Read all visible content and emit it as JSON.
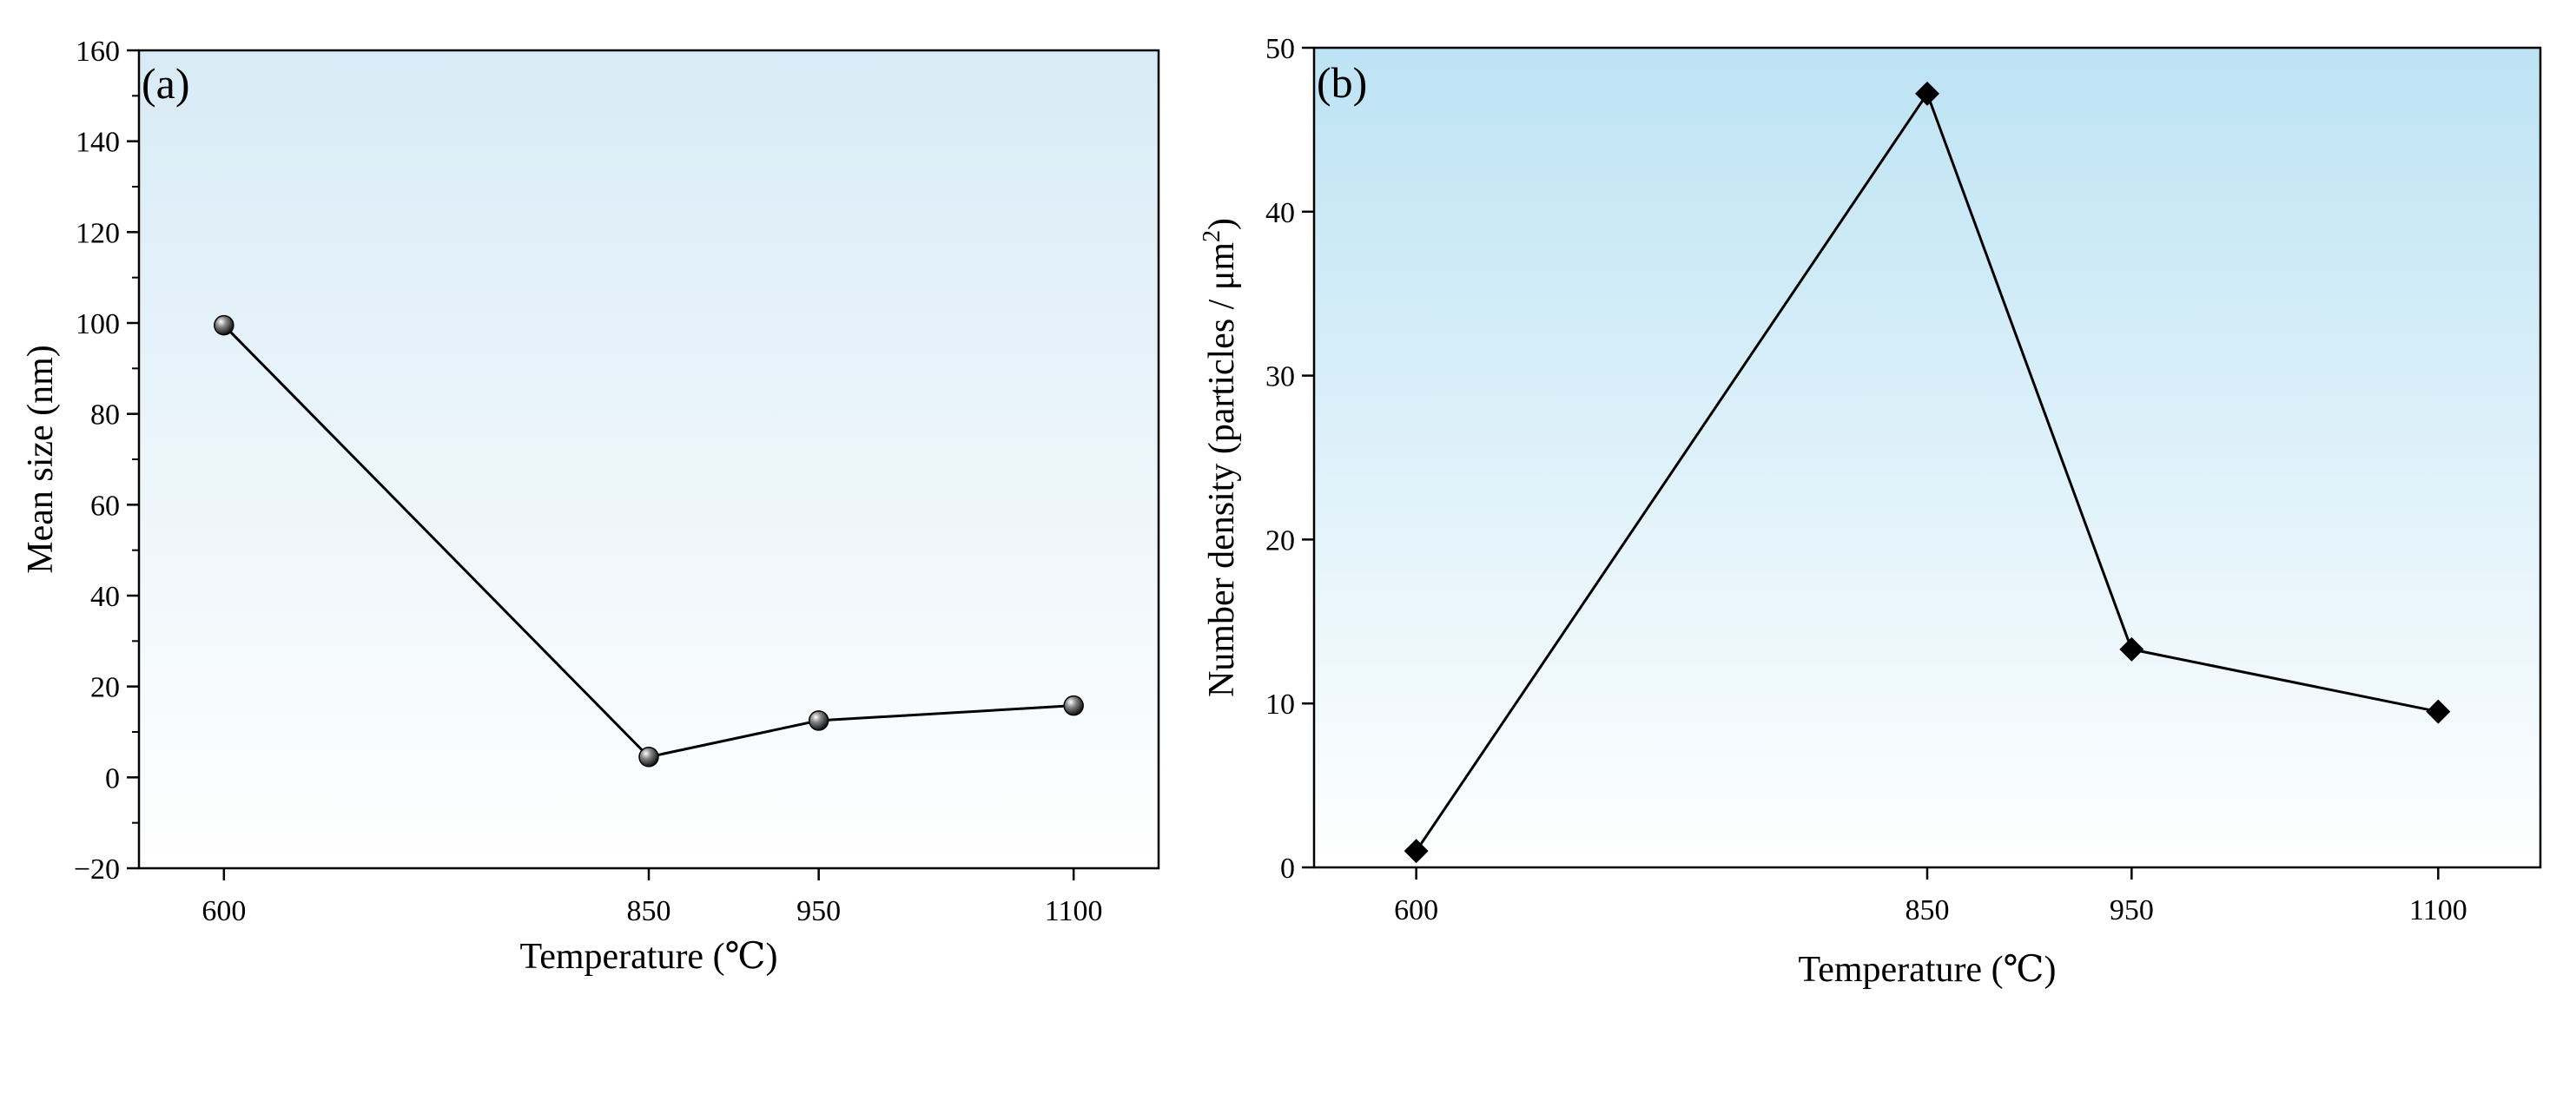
{
  "chart_data": [
    {
      "type": "line",
      "panel_label": "(a)",
      "categories": [
        "600",
        "850",
        "950",
        "1100"
      ],
      "x": [
        600,
        850,
        950,
        1100
      ],
      "values": [
        99.5,
        4.5,
        12.5,
        15.8
      ],
      "xlabel": "Temperature (℃)",
      "ylabel": "Mean size (nm)",
      "xlim": [
        550,
        1150
      ],
      "ylim": [
        -20,
        160
      ],
      "yticks": [
        -20,
        0,
        20,
        40,
        60,
        80,
        100,
        120,
        140,
        160
      ],
      "ytick_labels": [
        "−20",
        "0",
        "20",
        "40",
        "60",
        "80",
        "100",
        "120",
        "140",
        "160"
      ],
      "marker": "sphere",
      "grid": false,
      "background_gradient": [
        "#d8ebf6",
        "#ffffff"
      ]
    },
    {
      "type": "line",
      "panel_label": "(b)",
      "categories": [
        "600",
        "850",
        "950",
        "1100"
      ],
      "x": [
        600,
        850,
        950,
        1100
      ],
      "values": [
        1.0,
        47.2,
        13.3,
        9.5
      ],
      "xlabel": "Temperature (℃)",
      "ylabel": "Number density (particles / μm",
      "ylabel_superscript": "2",
      "ylabel_suffix": ")",
      "xlim": [
        550,
        1150
      ],
      "ylim": [
        0,
        50
      ],
      "yticks": [
        0,
        10,
        20,
        30,
        40,
        50
      ],
      "ytick_labels": [
        "0",
        "10",
        "20",
        "30",
        "40",
        "50"
      ],
      "marker": "diamond",
      "grid": false,
      "background_gradient": [
        "#bde3f4",
        "#ffffff"
      ]
    }
  ]
}
